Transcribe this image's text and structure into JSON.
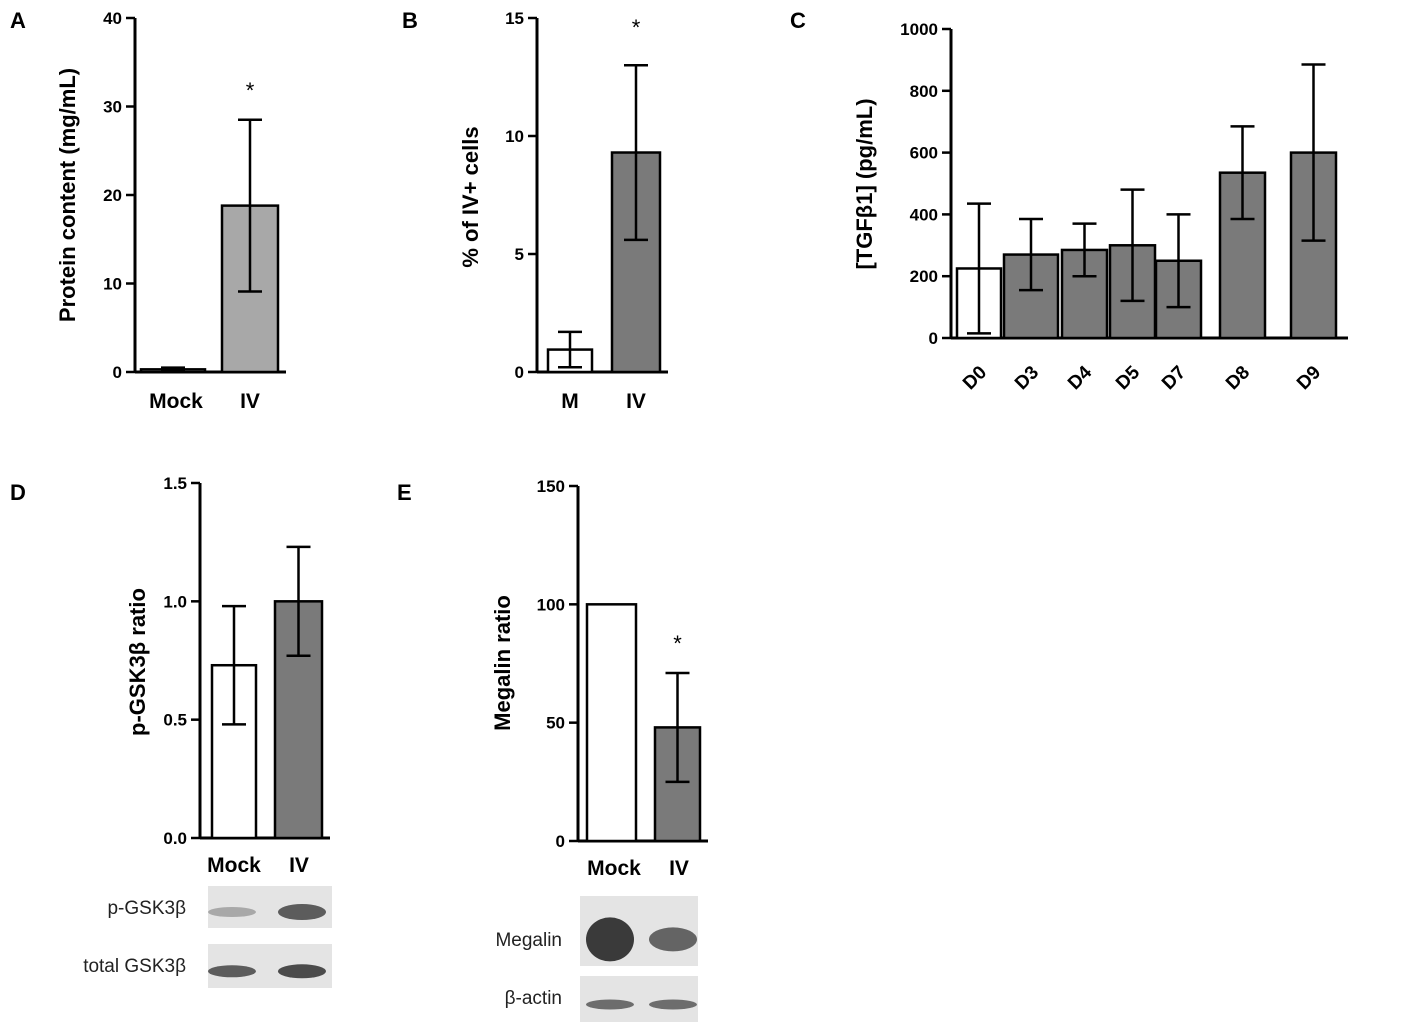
{
  "colors": {
    "white_bar": "#ffffff",
    "light_gray_bar": "#a8a8a8",
    "dark_gray_bar": "#7a7a7a",
    "axis": "#000000",
    "blot_bg": "#e4e4e4",
    "band": "#3a3a3a"
  },
  "chart_data": [
    {
      "panel": "A",
      "type": "bar",
      "ylabel": "Protein content (mg/mL)",
      "categories": [
        "Mock",
        "IV"
      ],
      "values": [
        0.3,
        18.8
      ],
      "errors": [
        0.2,
        9.7
      ],
      "yticks": [
        0,
        10,
        20,
        30,
        40
      ],
      "ylim": [
        0,
        40
      ],
      "significance": [
        "",
        "*"
      ],
      "bar_fills": [
        "#d8d8d8",
        "#a8a8a8"
      ],
      "grid": false
    },
    {
      "panel": "B",
      "type": "bar",
      "ylabel": "% of IV+ cells",
      "categories": [
        "M",
        "IV"
      ],
      "values": [
        0.95,
        9.3
      ],
      "errors": [
        0.75,
        3.7
      ],
      "yticks": [
        0,
        5,
        10,
        15
      ],
      "ylim": [
        0,
        15
      ],
      "significance": [
        "",
        "*"
      ],
      "bar_fills": [
        "#ffffff",
        "#7a7a7a"
      ],
      "grid": false
    },
    {
      "panel": "C",
      "type": "bar",
      "ylabel": "[TGFβ1] (pg/mL)",
      "categories": [
        "D0",
        "D3",
        "D4",
        "D5",
        "D7",
        "D8",
        "D9"
      ],
      "values": [
        225,
        270,
        285,
        300,
        250,
        535,
        600
      ],
      "errors": [
        210,
        115,
        85,
        180,
        150,
        150,
        285
      ],
      "yticks": [
        0,
        200,
        400,
        600,
        800,
        1000
      ],
      "ylim": [
        0,
        1000
      ],
      "bar_fills": [
        "#ffffff",
        "#7a7a7a",
        "#7a7a7a",
        "#7a7a7a",
        "#7a7a7a",
        "#7a7a7a",
        "#7a7a7a"
      ],
      "grid": false
    },
    {
      "panel": "D",
      "type": "bar",
      "ylabel": "p-GSK3β ratio",
      "categories": [
        "Mock",
        "IV"
      ],
      "values": [
        0.73,
        1.0
      ],
      "errors": [
        0.25,
        0.23
      ],
      "yticks": [
        "0.0",
        "0.5",
        "1.0",
        "1.5"
      ],
      "ylim": [
        0,
        1.5
      ],
      "bar_fills": [
        "#ffffff",
        "#7a7a7a"
      ],
      "grid": false,
      "blot_labels": [
        "p-GSK3β",
        "total GSK3β"
      ]
    },
    {
      "panel": "E",
      "type": "bar",
      "ylabel": "Megalin ratio",
      "categories": [
        "Mock",
        "IV"
      ],
      "values": [
        100,
        48
      ],
      "errors": [
        0,
        23
      ],
      "yticks": [
        0,
        50,
        100,
        150
      ],
      "ylim": [
        0,
        150
      ],
      "significance": [
        "",
        "*"
      ],
      "bar_fills": [
        "#ffffff",
        "#7a7a7a"
      ],
      "grid": false,
      "blot_labels": [
        "Megalin",
        "β-actin"
      ]
    }
  ]
}
